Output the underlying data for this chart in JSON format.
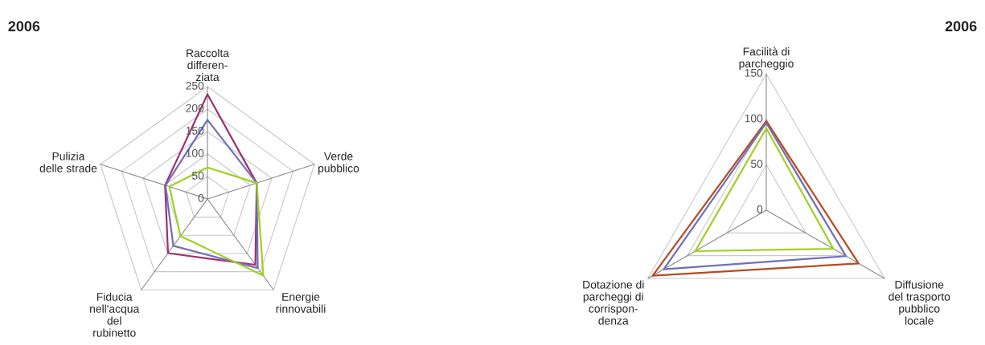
{
  "chart_data": [
    {
      "type": "radar",
      "title": "2006",
      "categories": [
        "Raccolta\ndifferen-\nziata",
        "Verde\npubblico",
        "Energie\nrinnovabili",
        "Fiducia\nnell'acqua\ndel\nrubinetto",
        "Pulizia\ndelle strade"
      ],
      "ylim": [
        0,
        250
      ],
      "yticks": [
        0,
        50,
        100,
        150,
        200,
        250
      ],
      "grid": true,
      "series": [
        {
          "color": "#a03070",
          "values": [
            233,
            115,
            181,
            149,
            99
          ]
        },
        {
          "color": "#7070b8",
          "values": [
            176,
            115,
            190,
            129,
            98
          ]
        },
        {
          "color": "#a0d020",
          "values": [
            70,
            115,
            211,
            102,
            89
          ]
        }
      ]
    },
    {
      "type": "radar",
      "title": "2006",
      "categories": [
        "Facilità di\nparcheggio",
        "Diffusione\ndel trasporto\npubblico\nlocale",
        "Dotazione di\nparcheggi di\ncorrispon-\ndenza"
      ],
      "ylim": [
        0,
        150
      ],
      "yticks": [
        0,
        50,
        100,
        150
      ],
      "grid": true,
      "series": [
        {
          "color": "#b84a20",
          "values": [
            98,
            117,
            144
          ]
        },
        {
          "color": "#7070b8",
          "values": [
            96,
            101,
            130
          ]
        },
        {
          "color": "#a0d020",
          "values": [
            90,
            85,
            90
          ]
        }
      ]
    }
  ]
}
